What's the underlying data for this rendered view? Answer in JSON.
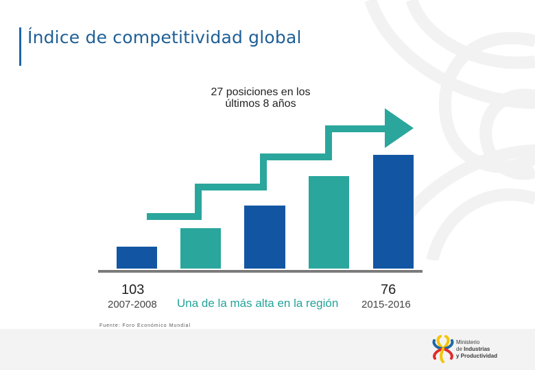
{
  "page": {
    "title": "Índice de competitividad global"
  },
  "chart_data": {
    "type": "bar",
    "title": "27 posiciones en los últimos 8 años",
    "categories": [
      "2007-2008",
      "",
      "",
      "",
      "",
      "2015-2016"
    ],
    "values": [
      103,
      null,
      null,
      null,
      null,
      76
    ],
    "ylabel": "",
    "xlabel": "",
    "bar_colors": [
      "#1256a3",
      "#2aa69d",
      "#1256a3",
      "#2aa69d",
      "#1256a3",
      "#1256a3"
    ],
    "first_label": {
      "value": "103",
      "period": "2007-2008"
    },
    "last_label": {
      "value": "76",
      "period": "2015-2016"
    },
    "note": "Una de la más alta en la región",
    "source": "Fuente: Foro Económico Mundial",
    "trend_arrow": "step-up-arrow",
    "arrow_color": "#2aa69d",
    "baseline_color": "#7b7b7b"
  },
  "logo": {
    "line1": "Ministerio",
    "line2_prefix": "de ",
    "line2_strong": "Industrias",
    "line3": "y Productividad"
  }
}
